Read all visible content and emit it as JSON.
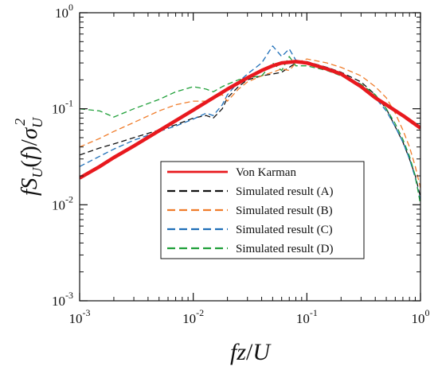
{
  "chart_data": {
    "type": "line",
    "xscale": "log",
    "yscale": "log",
    "xlim": [
      0.001,
      1
    ],
    "ylim": [
      0.001,
      1
    ],
    "x_ticks": [
      {
        "base": "10",
        "exp": "-3",
        "value": 0.001
      },
      {
        "base": "10",
        "exp": "-2",
        "value": 0.01
      },
      {
        "base": "10",
        "exp": "-1",
        "value": 0.1
      },
      {
        "base": "10",
        "exp": "0",
        "value": 1
      }
    ],
    "y_ticks": [
      {
        "base": "10",
        "exp": "-3",
        "value": 0.001
      },
      {
        "base": "10",
        "exp": "-2",
        "value": 0.01
      },
      {
        "base": "10",
        "exp": "-1",
        "value": 0.1
      },
      {
        "base": "10",
        "exp": "0",
        "value": 1
      }
    ],
    "xlabel": {
      "f": "f",
      "z": "z",
      "slash": "/",
      "U": "U"
    },
    "ylabel": {
      "f": "f",
      "S": "S",
      "sub": "U",
      "lp": "(",
      "farg": "f",
      "rp": ")",
      "slash": "/",
      "sigma": "σ",
      "sigsub": "U",
      "sigsup": "2"
    },
    "grid": false,
    "legend_position": "lower-center",
    "series": [
      {
        "name": "Von Karman",
        "color": "#e8191e",
        "dash": "solid",
        "x": [
          0.001,
          0.0015,
          0.002,
          0.003,
          0.005,
          0.007,
          0.01,
          0.015,
          0.02,
          0.03,
          0.04,
          0.05,
          0.06,
          0.08,
          0.1,
          0.15,
          0.2,
          0.3,
          0.4,
          0.5,
          0.7,
          1.0
        ],
        "y": [
          0.019,
          0.025,
          0.031,
          0.041,
          0.059,
          0.075,
          0.097,
          0.13,
          0.16,
          0.21,
          0.25,
          0.28,
          0.3,
          0.31,
          0.3,
          0.26,
          0.23,
          0.17,
          0.13,
          0.11,
          0.085,
          0.063
        ]
      },
      {
        "name": "Simulated result (A)",
        "color": "#111111",
        "dash": "dashed",
        "x": [
          0.001,
          0.0015,
          0.002,
          0.003,
          0.005,
          0.007,
          0.01,
          0.013,
          0.015,
          0.018,
          0.02,
          0.025,
          0.03,
          0.04,
          0.05,
          0.06,
          0.07,
          0.08,
          0.1,
          0.15,
          0.2,
          0.3,
          0.4,
          0.5,
          0.6,
          0.7,
          0.8,
          0.9,
          1.0
        ],
        "y": [
          0.033,
          0.039,
          0.043,
          0.05,
          0.06,
          0.068,
          0.08,
          0.085,
          0.08,
          0.1,
          0.13,
          0.17,
          0.2,
          0.22,
          0.23,
          0.24,
          0.27,
          0.3,
          0.31,
          0.27,
          0.24,
          0.19,
          0.14,
          0.1,
          0.065,
          0.045,
          0.03,
          0.02,
          0.012
        ]
      },
      {
        "name": "Simulated result (B)",
        "color": "#f07c2a",
        "dash": "dashed",
        "x": [
          0.001,
          0.0015,
          0.002,
          0.003,
          0.005,
          0.007,
          0.01,
          0.013,
          0.015,
          0.018,
          0.02,
          0.025,
          0.03,
          0.04,
          0.05,
          0.06,
          0.07,
          0.08,
          0.1,
          0.15,
          0.2,
          0.3,
          0.4,
          0.5,
          0.6,
          0.7,
          0.8,
          0.9,
          1.0
        ],
        "y": [
          0.04,
          0.049,
          0.058,
          0.072,
          0.095,
          0.11,
          0.12,
          0.12,
          0.13,
          0.14,
          0.12,
          0.16,
          0.19,
          0.22,
          0.24,
          0.26,
          0.25,
          0.3,
          0.33,
          0.3,
          0.27,
          0.22,
          0.17,
          0.13,
          0.09,
          0.06,
          0.04,
          0.025,
          0.015
        ]
      },
      {
        "name": "Simulated result (C)",
        "color": "#1f6fb8",
        "dash": "dashed",
        "x": [
          0.001,
          0.0015,
          0.002,
          0.003,
          0.005,
          0.007,
          0.01,
          0.013,
          0.015,
          0.018,
          0.02,
          0.025,
          0.03,
          0.04,
          0.05,
          0.06,
          0.07,
          0.08,
          0.1,
          0.15,
          0.2,
          0.3,
          0.4,
          0.5,
          0.6,
          0.7,
          0.8,
          0.9,
          1.0
        ],
        "y": [
          0.025,
          0.032,
          0.038,
          0.047,
          0.058,
          0.066,
          0.078,
          0.09,
          0.085,
          0.11,
          0.14,
          0.19,
          0.23,
          0.3,
          0.45,
          0.35,
          0.42,
          0.32,
          0.3,
          0.27,
          0.23,
          0.18,
          0.13,
          0.095,
          0.065,
          0.045,
          0.03,
          0.019,
          0.011
        ]
      },
      {
        "name": "Simulated result (D)",
        "color": "#20a03a",
        "dash": "dashed",
        "x": [
          0.001,
          0.0015,
          0.002,
          0.003,
          0.005,
          0.007,
          0.01,
          0.013,
          0.015,
          0.018,
          0.02,
          0.025,
          0.03,
          0.04,
          0.05,
          0.06,
          0.07,
          0.08,
          0.1,
          0.15,
          0.2,
          0.3,
          0.4,
          0.5,
          0.6,
          0.7,
          0.8,
          0.9,
          1.0
        ],
        "y": [
          0.1,
          0.095,
          0.082,
          0.1,
          0.125,
          0.15,
          0.17,
          0.16,
          0.15,
          0.17,
          0.18,
          0.2,
          0.21,
          0.22,
          0.3,
          0.25,
          0.35,
          0.28,
          0.28,
          0.25,
          0.22,
          0.18,
          0.14,
          0.1,
          0.07,
          0.048,
          0.032,
          0.02,
          0.01
        ]
      }
    ]
  }
}
